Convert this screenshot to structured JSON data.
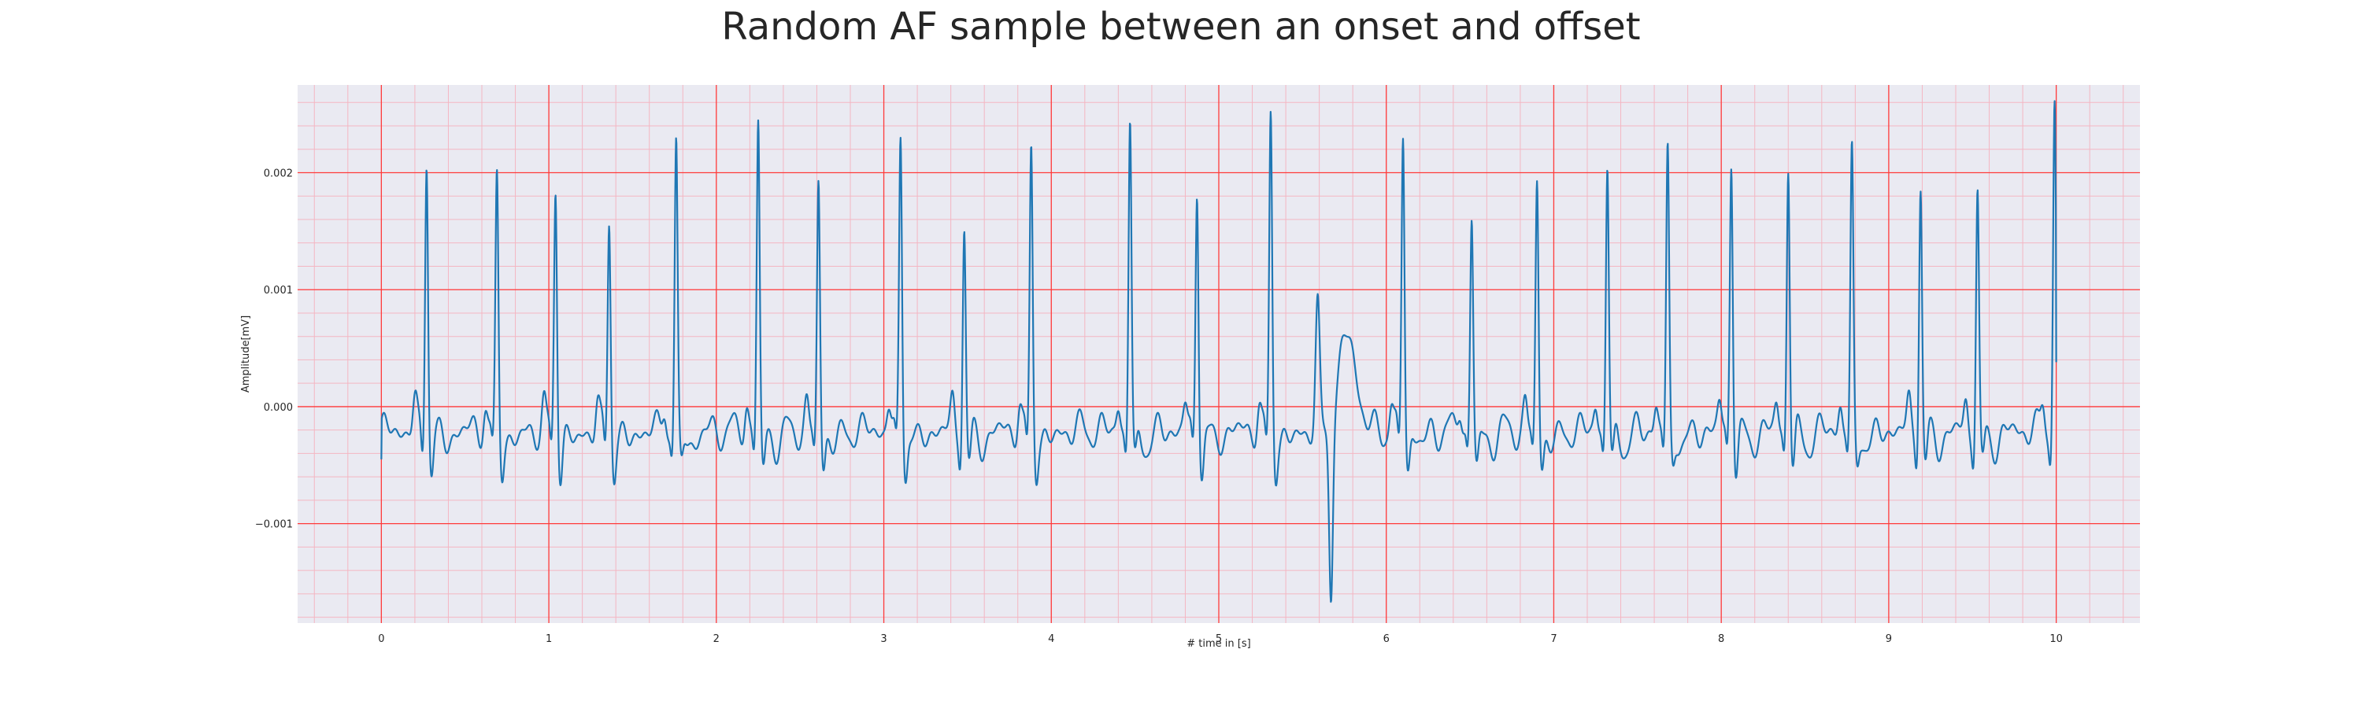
{
  "chart_data": {
    "type": "line",
    "title": "Random AF sample between an onset and offset",
    "xlabel": "# time in [s]",
    "ylabel": "Amplitude[mV]",
    "xlim": [
      -0.5,
      10.5
    ],
    "ylim": [
      -0.00185,
      0.00275
    ],
    "xticks": [
      0,
      1,
      2,
      3,
      4,
      5,
      6,
      7,
      8,
      9,
      10
    ],
    "xtick_labels": [
      "0",
      "1",
      "2",
      "3",
      "4",
      "5",
      "6",
      "7",
      "8",
      "9",
      "10"
    ],
    "yticks": [
      -0.001,
      0.0,
      0.001,
      0.002
    ],
    "ytick_labels": [
      "−0.001",
      "0.000",
      "0.001",
      "0.002"
    ],
    "grid": true,
    "minor_grid": true,
    "colors": {
      "line": "#1f77b4",
      "background": "#eaeaf2",
      "major_grid": "#ff3b3b",
      "minor_grid": "#f4b6c2"
    },
    "series": [
      {
        "beats": [
          {
            "t": 0.27,
            "peak": 0.0021
          },
          {
            "t": 0.69,
            "peak": 0.00184
          },
          {
            "t": 1.04,
            "peak": 0.0018
          },
          {
            "t": 1.36,
            "peak": 0.00153
          },
          {
            "t": 1.76,
            "peak": 0.00213
          },
          {
            "t": 2.25,
            "peak": 0.00233
          },
          {
            "t": 2.61,
            "peak": 0.00183
          },
          {
            "t": 3.1,
            "peak": 0.00224
          },
          {
            "t": 3.48,
            "peak": 0.00148
          },
          {
            "t": 3.88,
            "peak": 0.00212
          },
          {
            "t": 4.47,
            "peak": 0.00238
          },
          {
            "t": 4.87,
            "peak": 0.00183
          },
          {
            "t": 5.31,
            "peak": 0.00241
          },
          {
            "t": 6.1,
            "peak": 0.00229
          },
          {
            "t": 6.51,
            "peak": 0.00153
          },
          {
            "t": 6.9,
            "peak": 0.00184
          },
          {
            "t": 7.32,
            "peak": 0.002
          },
          {
            "t": 7.68,
            "peak": 0.0021
          },
          {
            "t": 8.06,
            "peak": 0.00208
          },
          {
            "t": 8.4,
            "peak": 0.00203
          },
          {
            "t": 8.78,
            "peak": 0.00205
          },
          {
            "t": 9.19,
            "peak": 0.00185
          },
          {
            "t": 9.53,
            "peak": 0.00176
          },
          {
            "t": 9.99,
            "peak": 0.00255
          }
        ],
        "artifact": {
          "t_start": 5.55,
          "t_end": 5.85,
          "max": 0.0008,
          "min": -0.00165,
          "plateau": 0.00062
        },
        "baseline": -0.0002,
        "start_value": -0.00045,
        "end_value": 0.00038
      }
    ]
  }
}
